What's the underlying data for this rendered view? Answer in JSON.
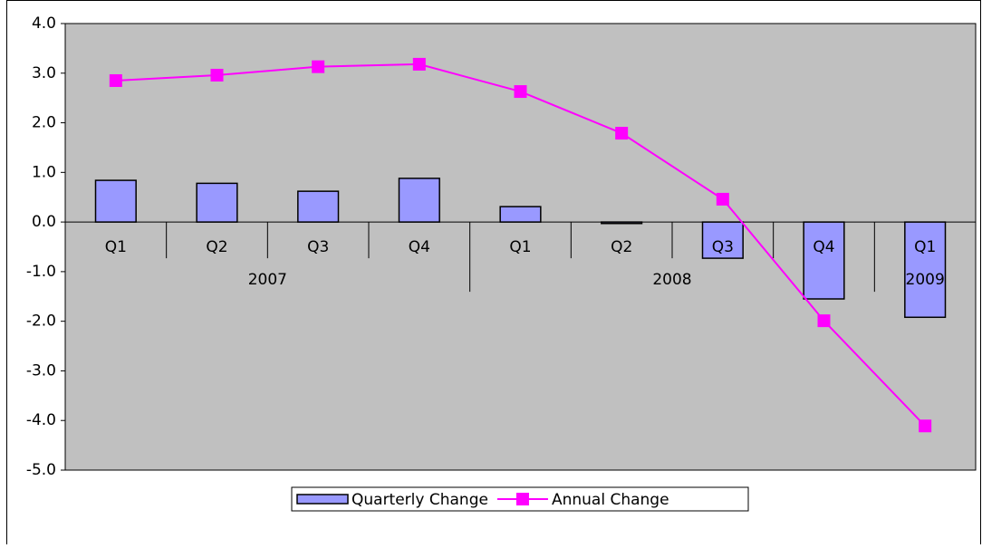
{
  "chart_data": {
    "type": "bar_line",
    "categories": [
      "Q1",
      "Q2",
      "Q3",
      "Q4",
      "Q1",
      "Q2",
      "Q3",
      "Q4",
      "Q1"
    ],
    "groups": [
      {
        "label": "2007",
        "span": 4
      },
      {
        "label": "2008",
        "span": 4
      },
      {
        "label": "2009",
        "span": 1
      }
    ],
    "series": [
      {
        "name": "Quarterly Change",
        "type": "bar",
        "color": "#9999ff",
        "values": [
          0.84,
          0.78,
          0.62,
          0.88,
          0.31,
          -0.03,
          -0.73,
          -1.55,
          -1.92
        ]
      },
      {
        "name": "Annual Change",
        "type": "line",
        "color": "#ff00ff",
        "values": [
          2.85,
          2.96,
          3.13,
          3.18,
          2.63,
          1.79,
          0.46,
          -1.99,
          -4.11
        ]
      }
    ],
    "ylim": [
      -5,
      4
    ],
    "yticks": [
      {
        "value": -5,
        "label": "-5.0"
      },
      {
        "value": -4,
        "label": "-4.0"
      },
      {
        "value": -3,
        "label": "-3.0"
      },
      {
        "value": -2,
        "label": "-2.0"
      },
      {
        "value": -1,
        "label": "-1.0"
      },
      {
        "value": 0,
        "label": "0.0"
      },
      {
        "value": 1,
        "label": "1.0"
      },
      {
        "value": 2,
        "label": "2.0"
      },
      {
        "value": 3,
        "label": "3.0"
      },
      {
        "value": 4,
        "label": "4.0"
      }
    ],
    "legend": "bottom"
  }
}
